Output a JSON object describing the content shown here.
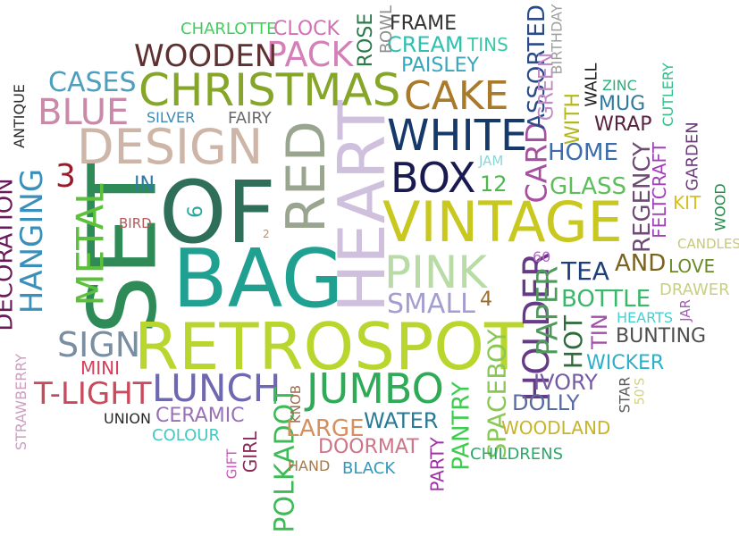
{
  "words": [
    {
      "text": "SET",
      "color": "#2e8b57",
      "vertical": true
    },
    {
      "text": "OF",
      "color": "#2f6f5a",
      "vertical": false
    },
    {
      "text": "BAG",
      "color": "#20a090",
      "vertical": false
    },
    {
      "text": "RETROSPOT",
      "color": "#b8d62e",
      "vertical": false
    },
    {
      "text": "HEART",
      "color": "#cfc0dd",
      "vertical": true
    },
    {
      "text": "VINTAGE",
      "color": "#c8c81e",
      "vertical": false
    },
    {
      "text": "RED",
      "color": "#9aa58f",
      "vertical": true
    },
    {
      "text": "DESIGN",
      "color": "#cdb6a8",
      "vertical": false
    },
    {
      "text": "CHRISTMAS",
      "color": "#86a62a",
      "vertical": false
    },
    {
      "text": "PINK",
      "color": "#b9dba6",
      "vertical": false
    },
    {
      "text": "WHITE",
      "color": "#15396b",
      "vertical": false
    },
    {
      "text": "BOX",
      "color": "#191a4f",
      "vertical": false
    },
    {
      "text": "JUMBO",
      "color": "#2faa57",
      "vertical": false
    },
    {
      "text": "LUNCH",
      "color": "#6e68b0",
      "vertical": false
    },
    {
      "text": "HANGING",
      "color": "#3b8fb8",
      "vertical": true
    },
    {
      "text": "METAL",
      "color": "#5cc03c",
      "vertical": true
    },
    {
      "text": "HOLDER",
      "color": "#663a86",
      "vertical": true
    },
    {
      "text": "CAKE",
      "color": "#a97a2a",
      "vertical": false
    },
    {
      "text": "PACK",
      "color": "#d47fb8",
      "vertical": false
    },
    {
      "text": "WOODEN",
      "color": "#5e3030",
      "vertical": false
    },
    {
      "text": "BLUE",
      "color": "#c98aa8",
      "vertical": false
    },
    {
      "text": "SIGN",
      "color": "#7a8ea2",
      "vertical": false
    },
    {
      "text": "T-LIGHT",
      "color": "#c94a5c",
      "vertical": false
    },
    {
      "text": "DECORATION",
      "color": "#6a1a5a",
      "vertical": true
    },
    {
      "text": "CASES",
      "color": "#4e9ebd",
      "vertical": false
    },
    {
      "text": "SPACEBOY",
      "color": "#8ac854",
      "vertical": true
    },
    {
      "text": "PAPER",
      "color": "#4e9a5a",
      "vertical": true
    },
    {
      "text": "CARD",
      "color": "#a64ea0",
      "vertical": true
    },
    {
      "text": "POLKADOT",
      "color": "#3dbb56",
      "vertical": true
    },
    {
      "text": "PANTRY",
      "color": "#3dcd4e",
      "vertical": true
    },
    {
      "text": "SMALL",
      "color": "#a49ed0",
      "vertical": false
    },
    {
      "text": "WATER",
      "color": "#2a7a96",
      "vertical": false
    },
    {
      "text": "LARGE",
      "color": "#d4905e",
      "vertical": false
    },
    {
      "text": "CERAMIC",
      "color": "#9a70b4",
      "vertical": false
    },
    {
      "text": "BOTTLE",
      "color": "#3ab86a",
      "vertical": false
    },
    {
      "text": "REGENCY",
      "color": "#6d4b72",
      "vertical": true
    },
    {
      "text": "HOT",
      "color": "#2e6a3a",
      "vertical": true
    },
    {
      "text": "TEA",
      "color": "#1c3f7a",
      "vertical": false
    },
    {
      "text": "AND",
      "color": "#7a6220",
      "vertical": false
    },
    {
      "text": "HOME",
      "color": "#3c6cae",
      "vertical": false
    },
    {
      "text": "GLASS",
      "color": "#5ebe5c",
      "vertical": false
    },
    {
      "text": "DOORMAT",
      "color": "#cd7488",
      "vertical": false
    },
    {
      "text": "BUNTING",
      "color": "#4e4e4e",
      "vertical": false
    },
    {
      "text": "TIN",
      "color": "#a050a8",
      "vertical": true
    },
    {
      "text": "WICKER",
      "color": "#2ab0c8",
      "vertical": false
    },
    {
      "text": "DOLLY",
      "color": "#5a6aa2",
      "vertical": false
    },
    {
      "text": "IVORY",
      "color": "#765aa4",
      "vertical": false
    },
    {
      "text": "ASSORTED",
      "color": "#2a4a8a",
      "vertical": true
    },
    {
      "text": "CREAM",
      "color": "#2ec0b0",
      "vertical": false
    },
    {
      "text": "PAISLEY",
      "color": "#3aa6ba",
      "vertical": false
    },
    {
      "text": "FRAME",
      "color": "#333333",
      "vertical": false
    },
    {
      "text": "CLOCK",
      "color": "#d470b4",
      "vertical": false
    },
    {
      "text": "CHARLOTTE",
      "color": "#3dd05a",
      "vertical": false
    },
    {
      "text": "ROSE",
      "color": "#2a7a4a",
      "vertical": true
    },
    {
      "text": "BOWL",
      "color": "#8e8e8e",
      "vertical": true
    },
    {
      "text": "TINS",
      "color": "#3cc8a8",
      "vertical": false
    },
    {
      "text": "GREEN",
      "color": "#c08ac4",
      "vertical": true
    },
    {
      "text": "BIRTHDAY",
      "color": "#9e9e9e",
      "vertical": true
    },
    {
      "text": "WALL",
      "color": "#1e1e1e",
      "vertical": true
    },
    {
      "text": "WITH",
      "color": "#b4b81a",
      "vertical": true
    },
    {
      "text": "ZINC",
      "color": "#2ab07a",
      "vertical": false
    },
    {
      "text": "MUG",
      "color": "#2e7aa0",
      "vertical": false
    },
    {
      "text": "WRAP",
      "color": "#5a2040",
      "vertical": false
    },
    {
      "text": "CUTLERY",
      "color": "#2ec08a",
      "vertical": true
    },
    {
      "text": "FELTCRAFT",
      "color": "#a040b8",
      "vertical": true
    },
    {
      "text": "GARDEN",
      "color": "#6a3c7a",
      "vertical": true
    },
    {
      "text": "KIT",
      "color": "#d4c01e",
      "vertical": false
    },
    {
      "text": "WOOD",
      "color": "#2a8a4e",
      "vertical": true
    },
    {
      "text": "CANDLES",
      "color": "#c8c878",
      "vertical": false
    },
    {
      "text": "LOVE",
      "color": "#6a8a2a",
      "vertical": false
    },
    {
      "text": "DRAWER",
      "color": "#c8d080",
      "vertical": false
    },
    {
      "text": "JAR",
      "color": "#a060b4",
      "vertical": true
    },
    {
      "text": "HEARTS",
      "color": "#46d0d0",
      "vertical": false
    },
    {
      "text": "STAR",
      "color": "#5a5a5a",
      "vertical": true
    },
    {
      "text": "50'S",
      "color": "#d0d080",
      "vertical": true
    },
    {
      "text": "WOODLAND",
      "color": "#c8b42a",
      "vertical": false
    },
    {
      "text": "CHILDRENS",
      "color": "#2aa86a",
      "vertical": false
    },
    {
      "text": "PARTY",
      "color": "#a030a8",
      "vertical": true
    },
    {
      "text": "BLACK",
      "color": "#2e9ac0",
      "vertical": false
    },
    {
      "text": "HAND",
      "color": "#a67a4a",
      "vertical": false
    },
    {
      "text": "GIRL",
      "color": "#8a2a5a",
      "vertical": true
    },
    {
      "text": "KNOB",
      "color": "#a06a4a",
      "vertical": true
    },
    {
      "text": "GIFT",
      "color": "#c858b8",
      "vertical": true
    },
    {
      "text": "COLOUR",
      "color": "#46c8c0",
      "vertical": false
    },
    {
      "text": "UNION",
      "color": "#2a2a2a",
      "vertical": false
    },
    {
      "text": "MINI",
      "color": "#d4405c",
      "vertical": false
    },
    {
      "text": "STRAWBERRY",
      "color": "#cca0c0",
      "vertical": true
    },
    {
      "text": "ANTIQUE",
      "color": "#2a2a2a",
      "vertical": true
    },
    {
      "text": "SILVER",
      "color": "#3e8ab4",
      "vertical": false
    },
    {
      "text": "FAIRY",
      "color": "#6a6a6a",
      "vertical": false
    },
    {
      "text": "IN",
      "color": "#2e7aaa",
      "vertical": false
    },
    {
      "text": "BIRD",
      "color": "#b45a5a",
      "vertical": false
    },
    {
      "text": "JAM",
      "color": "#8ad6d6",
      "vertical": false
    },
    {
      "text": "12",
      "color": "#4eb84e",
      "vertical": false
    },
    {
      "text": "60",
      "color": "#b46ac4",
      "vertical": false
    },
    {
      "text": "4",
      "color": "#a06a2a",
      "vertical": false
    },
    {
      "text": "3",
      "color": "#9a1a2a",
      "vertical": false
    },
    {
      "text": "6",
      "color": "#2aa8a0",
      "vertical": true
    },
    {
      "text": "2",
      "color": "#c8904a",
      "vertical": false
    }
  ]
}
